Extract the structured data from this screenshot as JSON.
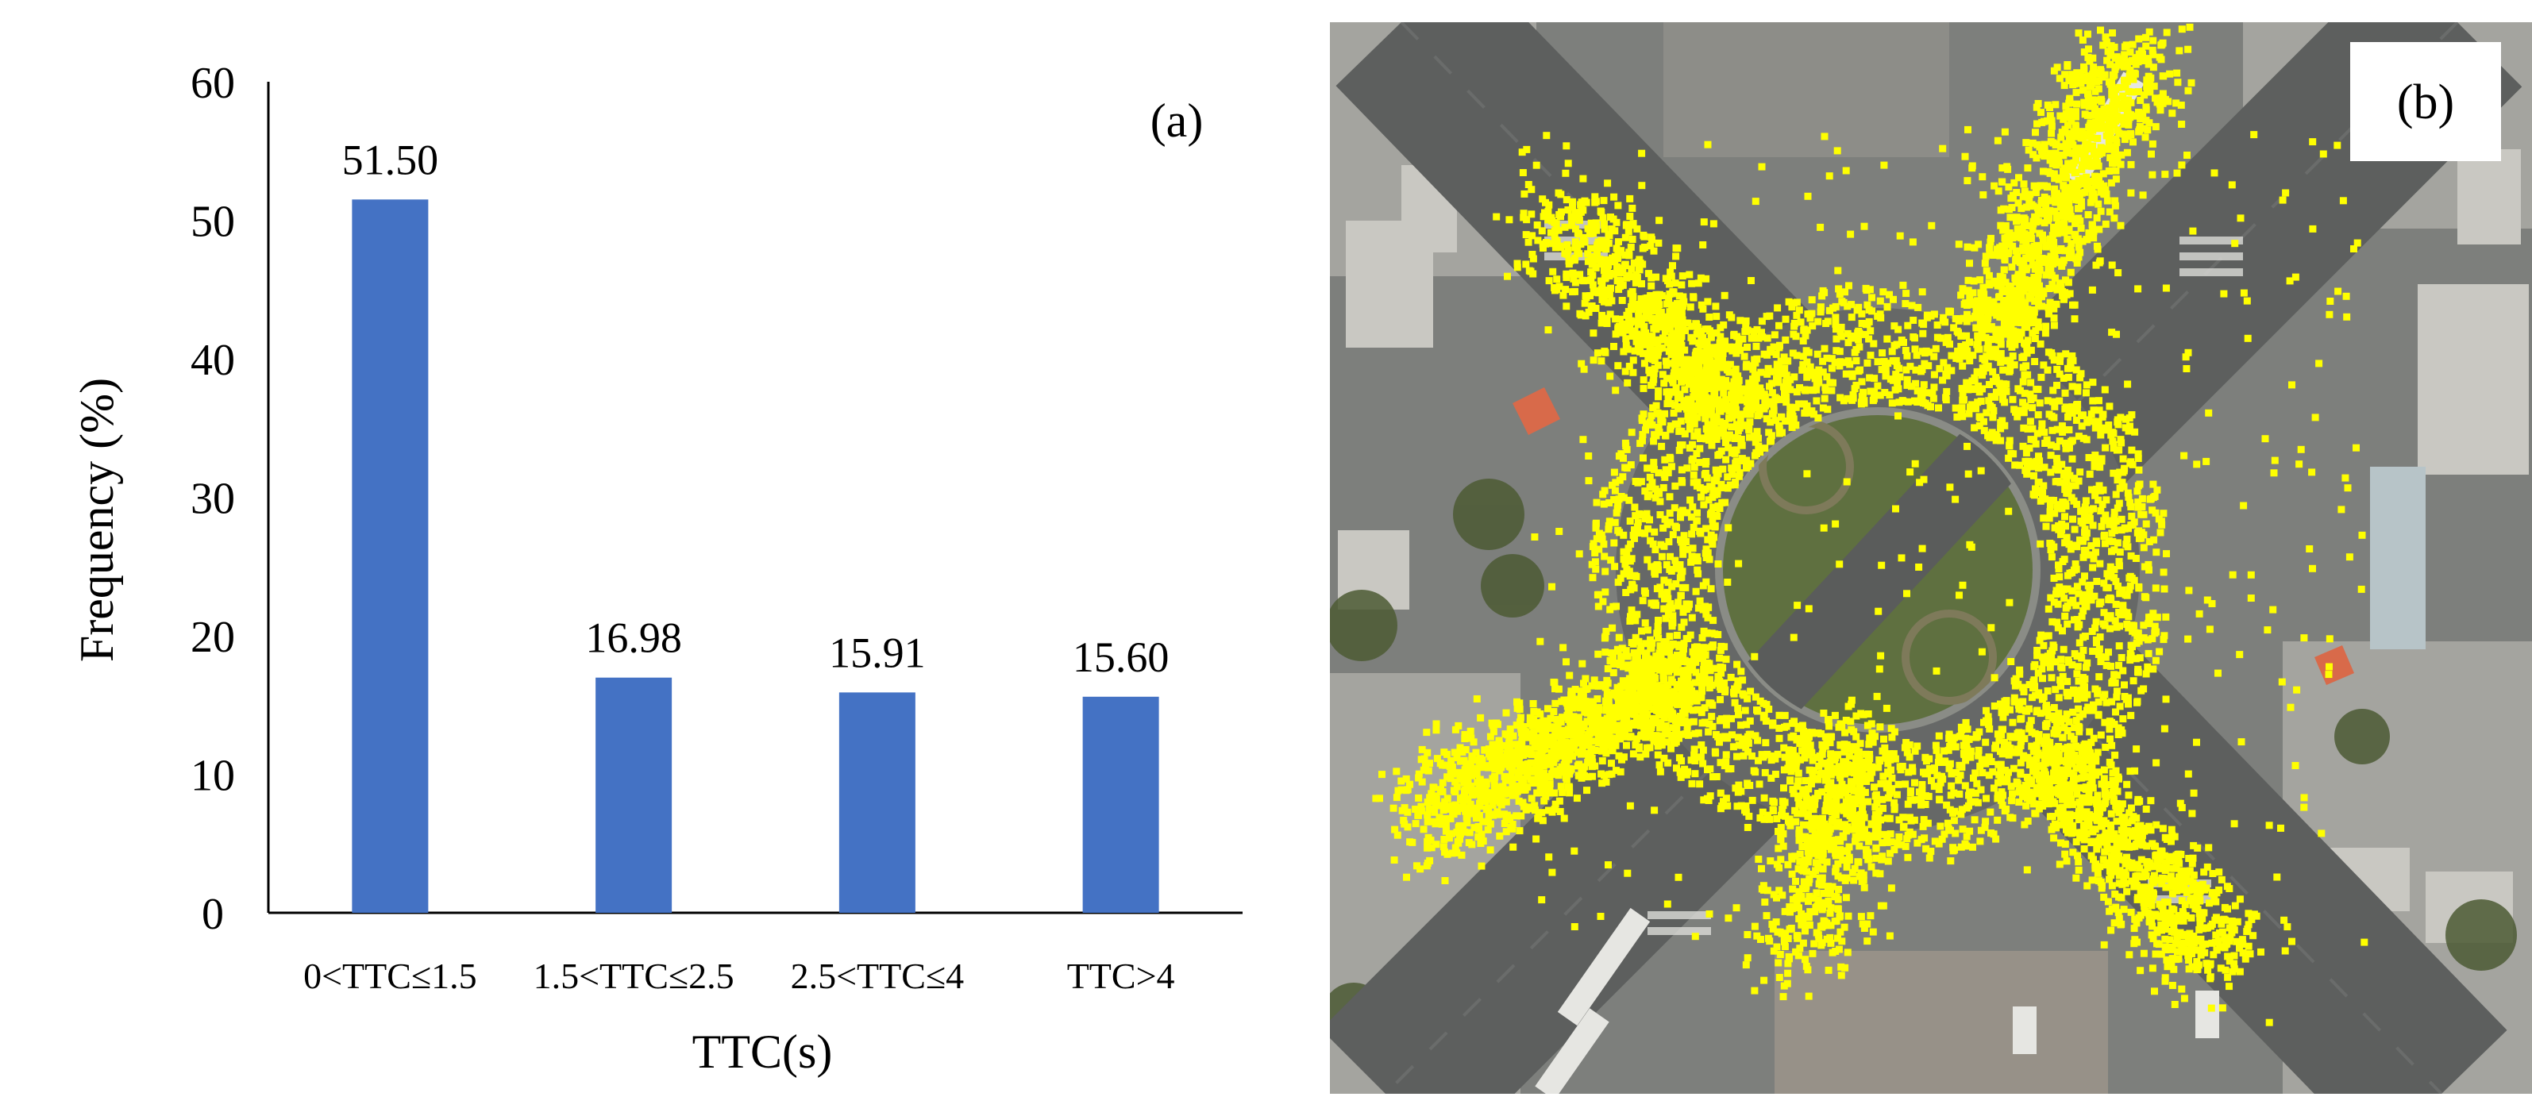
{
  "chart_data": {
    "type": "bar",
    "categories": [
      "0<TTC≤1.5",
      "1.5<TTC≤2.5",
      "2.5<TTC≤4",
      "TTC>4"
    ],
    "values": [
      51.5,
      16.98,
      15.91,
      15.6
    ],
    "data_labels": [
      "51.50",
      "16.98",
      "15.91",
      "15.60"
    ],
    "xlabel": "TTC(s)",
    "ylabel": "Frequency (%)",
    "ylim": [
      0,
      60
    ],
    "yticks": [
      "0",
      "10",
      "20",
      "30",
      "40",
      "50",
      "60"
    ],
    "grid": false,
    "legend": "none",
    "bar_color": "#4472C4",
    "panel_label": "(a)"
  },
  "photo": {
    "panel_label": "(b)",
    "marker_color": "#FFFF00",
    "description_icon": "aerial-roundabout-image"
  }
}
